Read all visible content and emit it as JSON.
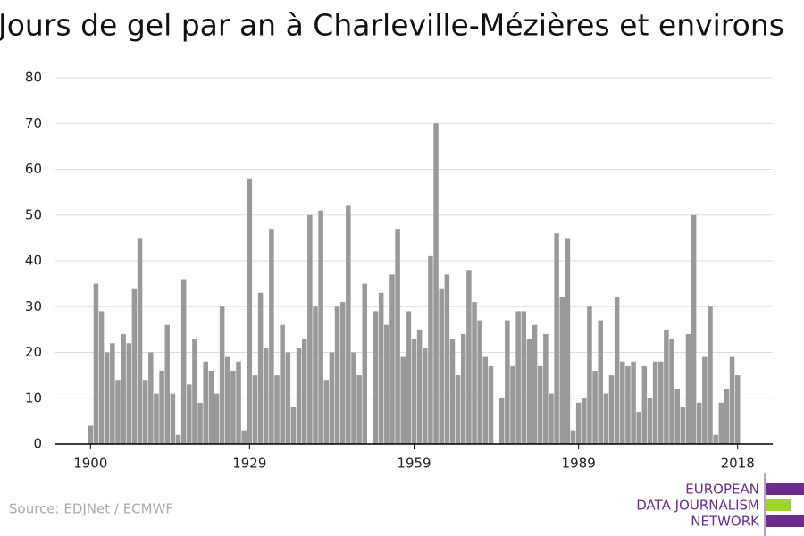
{
  "chart_data": {
    "type": "bar",
    "title": "Jours de gel par an à Charleville-Mézières et environs",
    "x": [
      1900,
      1901,
      1902,
      1903,
      1904,
      1905,
      1906,
      1907,
      1908,
      1909,
      1910,
      1911,
      1912,
      1913,
      1914,
      1915,
      1916,
      1917,
      1918,
      1919,
      1920,
      1921,
      1922,
      1923,
      1924,
      1925,
      1926,
      1927,
      1928,
      1929,
      1930,
      1931,
      1932,
      1933,
      1934,
      1935,
      1936,
      1937,
      1938,
      1939,
      1940,
      1941,
      1942,
      1943,
      1944,
      1945,
      1946,
      1947,
      1948,
      1949,
      1950,
      1951,
      1952,
      1953,
      1954,
      1955,
      1956,
      1957,
      1958,
      1959,
      1960,
      1961,
      1962,
      1963,
      1964,
      1965,
      1966,
      1967,
      1968,
      1969,
      1970,
      1971,
      1972,
      1973,
      1974,
      1975,
      1976,
      1977,
      1978,
      1979,
      1980,
      1981,
      1982,
      1983,
      1984,
      1985,
      1986,
      1987,
      1988,
      1989,
      1990,
      1991,
      1992,
      1993,
      1994,
      1995,
      1996,
      1997,
      1998,
      1999,
      2000,
      2001,
      2002,
      2003,
      2004,
      2005,
      2006,
      2007,
      2008,
      2009,
      2010,
      2011,
      2012,
      2013,
      2014,
      2015,
      2016,
      2017,
      2018
    ],
    "values": [
      4,
      35,
      29,
      20,
      22,
      14,
      24,
      22,
      34,
      45,
      14,
      20,
      11,
      16,
      26,
      11,
      2,
      36,
      13,
      23,
      9,
      18,
      16,
      11,
      30,
      19,
      16,
      18,
      3,
      58,
      15,
      33,
      21,
      47,
      15,
      26,
      20,
      8,
      21,
      23,
      50,
      30,
      51,
      14,
      20,
      30,
      31,
      52,
      20,
      15,
      35,
      0,
      29,
      33,
      26,
      37,
      47,
      19,
      29,
      23,
      25,
      21,
      41,
      70,
      34,
      37,
      23,
      15,
      24,
      38,
      31,
      27,
      19,
      17,
      0,
      10,
      27,
      17,
      29,
      29,
      23,
      26,
      17,
      24,
      11,
      46,
      32,
      45,
      3,
      9,
      10,
      30,
      16,
      27,
      11,
      15,
      32,
      18,
      17,
      18,
      7,
      17,
      10,
      18,
      18,
      25,
      23,
      12,
      8,
      24,
      50,
      9,
      19,
      30,
      2,
      9,
      12,
      19,
      15
    ],
    "color": "#999999",
    "xlim": [
      1893.6,
      2024.4
    ],
    "xticks": [
      1900,
      1929,
      1959,
      1989,
      2018
    ],
    "ylim": [
      0,
      80
    ],
    "yticks": [
      0,
      10,
      20,
      30,
      40,
      50,
      60,
      70,
      80
    ],
    "grid": true,
    "source": "Source: EDJNet / ECMWF",
    "logo": [
      "EUROPEAN",
      "DATA JOURNALISM",
      "NETWORK"
    ]
  }
}
